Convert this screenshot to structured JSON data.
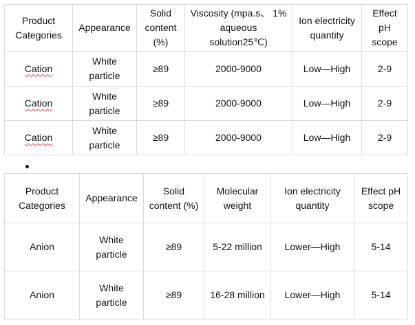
{
  "table1": {
    "headers": [
      [
        "Product",
        "Categories"
      ],
      [
        "Appearance"
      ],
      [
        "Solid",
        "content",
        "(%)"
      ],
      [
        "Viscosity (mpa.s、 1%",
        "aqueous",
        "solution25℃)"
      ],
      [
        "Ion electricity",
        "quantity"
      ],
      [
        "Effect",
        "pH",
        "scope"
      ]
    ],
    "rows": [
      {
        "category": "Cation",
        "appearance": [
          "White",
          "particle"
        ],
        "solid": "≥89",
        "viscosity": "2000-9000",
        "ion": "Low—High",
        "ph": "2-9"
      },
      {
        "category": "Cation",
        "appearance": [
          "White",
          "particle"
        ],
        "solid": "≥89",
        "viscosity": "2000-9000",
        "ion": "Low—High",
        "ph": "2-9"
      },
      {
        "category": "Cation",
        "appearance": [
          "White",
          "particle"
        ],
        "solid": "≥89",
        "viscosity": "2000-9000",
        "ion": "Low—High",
        "ph": "2-9"
      }
    ]
  },
  "table2": {
    "headers": [
      [
        "Product",
        "Categories"
      ],
      [
        "Appearance"
      ],
      [
        "Solid",
        "content (%)"
      ],
      [
        "Molecular",
        "weight"
      ],
      [
        "Ion electricity",
        "quantity"
      ],
      [
        "Effect pH",
        "scope"
      ]
    ],
    "rows": [
      {
        "category": "Anion",
        "appearance": [
          "White",
          "particle"
        ],
        "solid": "≥89",
        "weight": "5-22 million",
        "ion": "Lower—High",
        "ph": "5-14"
      },
      {
        "category": "Anion",
        "appearance": [
          "White",
          "particle"
        ],
        "solid": "≥89",
        "weight": "16-28 million",
        "ion": "Lower—High",
        "ph": "5-14"
      }
    ]
  }
}
